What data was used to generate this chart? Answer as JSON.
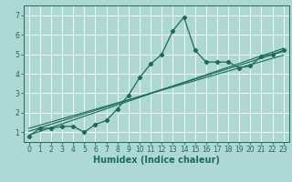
{
  "xlabel": "Humidex (Indice chaleur)",
  "ylabel": "",
  "background_color": "#aed8d4",
  "grid_color": "#d0eeea",
  "line_color": "#1a6b5a",
  "x_data": [
    0,
    1,
    2,
    3,
    4,
    5,
    6,
    7,
    8,
    9,
    10,
    11,
    12,
    13,
    14,
    15,
    16,
    17,
    18,
    19,
    20,
    21,
    22,
    23
  ],
  "y_data": [
    0.8,
    1.2,
    1.2,
    1.3,
    1.3,
    1.0,
    1.4,
    1.6,
    2.2,
    2.9,
    3.8,
    4.5,
    5.0,
    6.2,
    6.9,
    5.2,
    4.6,
    4.6,
    4.6,
    4.3,
    4.4,
    4.9,
    5.0,
    5.2
  ],
  "reg_line1_start": 0.85,
  "reg_line1_end": 5.3,
  "reg_line2_start": 1.05,
  "reg_line2_end": 5.15,
  "reg_line3_start": 1.2,
  "reg_line3_end": 4.95,
  "xlim": [
    -0.5,
    23.5
  ],
  "ylim": [
    0.5,
    7.5
  ],
  "yticks": [
    1,
    2,
    3,
    4,
    5,
    6,
    7
  ],
  "xticks": [
    0,
    1,
    2,
    3,
    4,
    5,
    6,
    7,
    8,
    9,
    10,
    11,
    12,
    13,
    14,
    15,
    16,
    17,
    18,
    19,
    20,
    21,
    22,
    23
  ],
  "tick_fontsize": 5.5,
  "xlabel_fontsize": 7,
  "marker": "D",
  "markersize": 2.2,
  "linewidth": 0.9,
  "reg_linewidth": 0.8
}
